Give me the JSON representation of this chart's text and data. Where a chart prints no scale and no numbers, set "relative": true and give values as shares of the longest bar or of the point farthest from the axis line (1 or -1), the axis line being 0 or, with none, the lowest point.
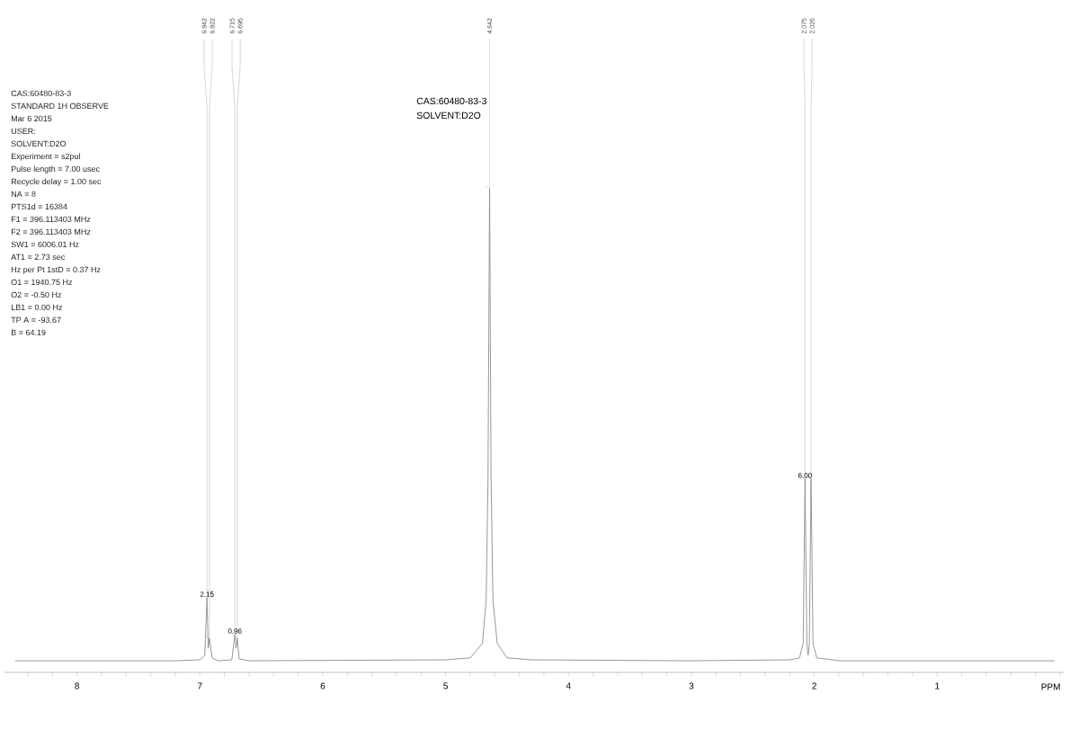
{
  "chart_data": {
    "type": "line",
    "relative": true,
    "title": "CAS:60480-83-3",
    "subtitle": "SOLVENT:D2O",
    "xlabel": "PPM",
    "xlim": [
      8.59,
      -0.03
    ],
    "xticks": [
      {
        "value": 8.4,
        "label": null
      },
      {
        "value": 8.2,
        "label": null
      },
      8,
      {
        "value": 7.8,
        "label": null
      },
      {
        "value": 7.6,
        "label": null
      },
      {
        "value": 7.4,
        "label": null
      },
      {
        "value": 7.2,
        "label": null
      },
      7,
      {
        "value": 6.8,
        "label": null
      },
      {
        "value": 6.6,
        "label": null
      },
      {
        "value": 6.4,
        "label": null
      },
      {
        "value": 6.2,
        "label": null
      },
      6,
      {
        "value": 5.8,
        "label": null
      },
      {
        "value": 5.6,
        "label": null
      },
      {
        "value": 5.4,
        "label": null
      },
      {
        "value": 5.2,
        "label": null
      },
      5,
      {
        "value": 4.8,
        "label": null
      },
      {
        "value": 4.6,
        "label": null
      },
      {
        "value": 4.4,
        "label": null
      },
      {
        "value": 4.2,
        "label": null
      },
      4,
      {
        "value": 3.8,
        "label": null
      },
      {
        "value": 3.6,
        "label": null
      },
      {
        "value": 3.4,
        "label": null
      },
      {
        "value": 3.2,
        "label": null
      },
      3,
      {
        "value": 2.8,
        "label": null
      },
      {
        "value": 2.6,
        "label": null
      },
      {
        "value": 2.4,
        "label": null
      },
      {
        "value": 2.2,
        "label": null
      },
      2,
      {
        "value": 1.8,
        "label": null
      },
      {
        "value": 1.6,
        "label": null
      },
      {
        "value": 1.4,
        "label": null
      },
      {
        "value": 1.2,
        "label": null
      },
      1,
      {
        "value": 0.8,
        "label": null
      },
      {
        "value": 0.6,
        "label": null
      },
      {
        "value": 0.4,
        "label": null
      },
      {
        "value": 0.2,
        "label": null
      },
      {
        "value": 0.0,
        "label": null
      }
    ],
    "marker": "none",
    "line_style": "solid",
    "series": [
      {
        "color": "#8c8c8c",
        "x": [
          8.5,
          7.2,
          7.0,
          6.96,
          6.942,
          6.932,
          6.922,
          6.9,
          6.85,
          6.74,
          6.715,
          6.705,
          6.695,
          6.68,
          6.6,
          5.0,
          4.8,
          4.7,
          4.67,
          4.655,
          4.642,
          4.63,
          4.615,
          4.58,
          4.5,
          4.3,
          3.0,
          2.2,
          2.12,
          2.09,
          2.075,
          2.06,
          2.05,
          2.04,
          2.026,
          2.01,
          1.98,
          1.85,
          1.8,
          0.05
        ],
        "values": [
          0.024,
          0.024,
          0.026,
          0.035,
          0.154,
          0.05,
          0.07,
          0.03,
          0.024,
          0.026,
          0.078,
          0.05,
          0.07,
          0.028,
          0.024,
          0.026,
          0.03,
          0.06,
          0.15,
          0.4,
          1,
          0.4,
          0.15,
          0.06,
          0.03,
          0.026,
          0.024,
          0.026,
          0.03,
          0.06,
          0.4,
          0.06,
          0.035,
          0.06,
          0.4,
          0.06,
          0.03,
          0.026,
          0.024,
          0.024
        ]
      }
    ],
    "annotations": [
      {
        "text": "6.942",
        "x": 6.942,
        "y": 0.154
      },
      {
        "text": "6.922",
        "x": 6.922,
        "y": 0.07
      },
      {
        "text": "6.715",
        "x": 6.715,
        "y": 0.078
      },
      {
        "text": "6.695",
        "x": 6.695,
        "y": 0.07
      },
      {
        "text": "4.642",
        "x": 4.642,
        "y": 1
      },
      {
        "text": "2.075",
        "x": 2.075,
        "y": 0.4
      },
      {
        "text": "2.026",
        "x": 2.026,
        "y": 0.4
      },
      {
        "text": "2.15",
        "x": 6.942,
        "y": 0.154
      },
      {
        "text": "0.96",
        "x": 6.715,
        "y": 0.078
      },
      {
        "text": "6.00",
        "x": 2.075,
        "y": 0.4
      },
      "CAS:60480-83-3",
      "STANDARD 1H OBSERVE",
      "Mar 6 2015",
      "USER:",
      "SOLVENT:D2O",
      "Experiment = s2pul",
      "Pulse length = 7.00 usec",
      "Recycle delay = 1.00 sec",
      "NA = 8",
      "PTS1d = 16384",
      "F1 = 396.113403 MHz",
      "F2 = 396.113403 MHz",
      "SW1 = 6006.01 Hz",
      "AT1 = 2.73 sec",
      "Hz per Pt 1stD = 0.37 Hz",
      "O1 = 1940.75 Hz",
      "O2 = -0.50 Hz",
      "LB1 = 0.00 Hz",
      "TP A = -93.67",
      "B = 64.19"
    ]
  }
}
